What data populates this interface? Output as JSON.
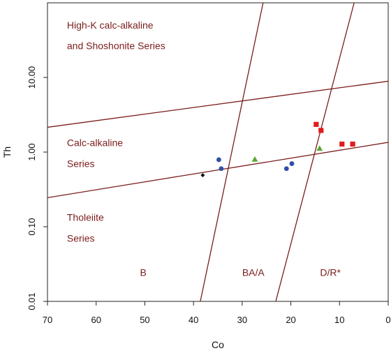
{
  "chart_data": {
    "type": "scatter",
    "title": "",
    "xlabel": "Co",
    "ylabel": "Th",
    "x_reversed": true,
    "y_scale": "log",
    "xlim": [
      70,
      0
    ],
    "ylim": [
      0.01,
      100
    ],
    "x_ticks": [
      "70",
      "60",
      "50",
      "40",
      "30",
      "20",
      "10",
      "0"
    ],
    "y_ticks": [
      "0.01",
      "0.10",
      "1.00",
      "10.00"
    ],
    "grid": false,
    "colors": {
      "boundary_lines": "#7b1c1c",
      "region_text": "#7b1c1c",
      "axis": "#222222"
    },
    "region_labels": [
      {
        "text": "High-K calc-alkaline",
        "x": 66,
        "y": 45
      },
      {
        "text": "and Shoshonite Series",
        "x": 66,
        "y": 24
      },
      {
        "text": "Calc-alkaline",
        "x": 66,
        "y": 1.2
      },
      {
        "text": "Series",
        "x": 66,
        "y": 0.63
      },
      {
        "text": "Tholeiite",
        "x": 66,
        "y": 0.12
      },
      {
        "text": "Series",
        "x": 66,
        "y": 0.063
      },
      {
        "text": "B",
        "x": 51,
        "y": 0.022
      },
      {
        "text": "BA/A",
        "x": 30,
        "y": 0.022
      },
      {
        "text": "D/R*",
        "x": 14,
        "y": 0.022
      }
    ],
    "boundary_lines": [
      {
        "name": "upper",
        "points": [
          [
            70,
            2.15
          ],
          [
            0,
            8.9
          ]
        ]
      },
      {
        "name": "lower",
        "points": [
          [
            70,
            0.245
          ],
          [
            0,
            1.35
          ]
        ]
      },
      {
        "name": "BA-A",
        "points": [
          [
            38.6,
            0.01
          ],
          [
            25.7,
            100
          ]
        ]
      },
      {
        "name": "D-R",
        "points": [
          [
            23.1,
            0.01
          ],
          [
            7.0,
            100
          ]
        ]
      }
    ],
    "series": [
      {
        "marker": "circle",
        "color": "#2f4fa8",
        "points": [
          [
            34.8,
            0.79
          ],
          [
            34.3,
            0.6
          ],
          [
            20.9,
            0.6
          ],
          [
            19.8,
            0.7
          ]
        ]
      },
      {
        "marker": "triangle",
        "color": "#5aa832",
        "points": [
          [
            27.4,
            0.8
          ],
          [
            14.1,
            1.12
          ]
        ]
      },
      {
        "marker": "square",
        "color": "#e01c1c",
        "points": [
          [
            14.8,
            2.35
          ],
          [
            13.8,
            1.95
          ],
          [
            9.5,
            1.28
          ],
          [
            7.3,
            1.28
          ]
        ]
      },
      {
        "marker": "diamond",
        "color": "#111111",
        "points": [
          [
            38.1,
            0.49
          ]
        ]
      }
    ]
  }
}
